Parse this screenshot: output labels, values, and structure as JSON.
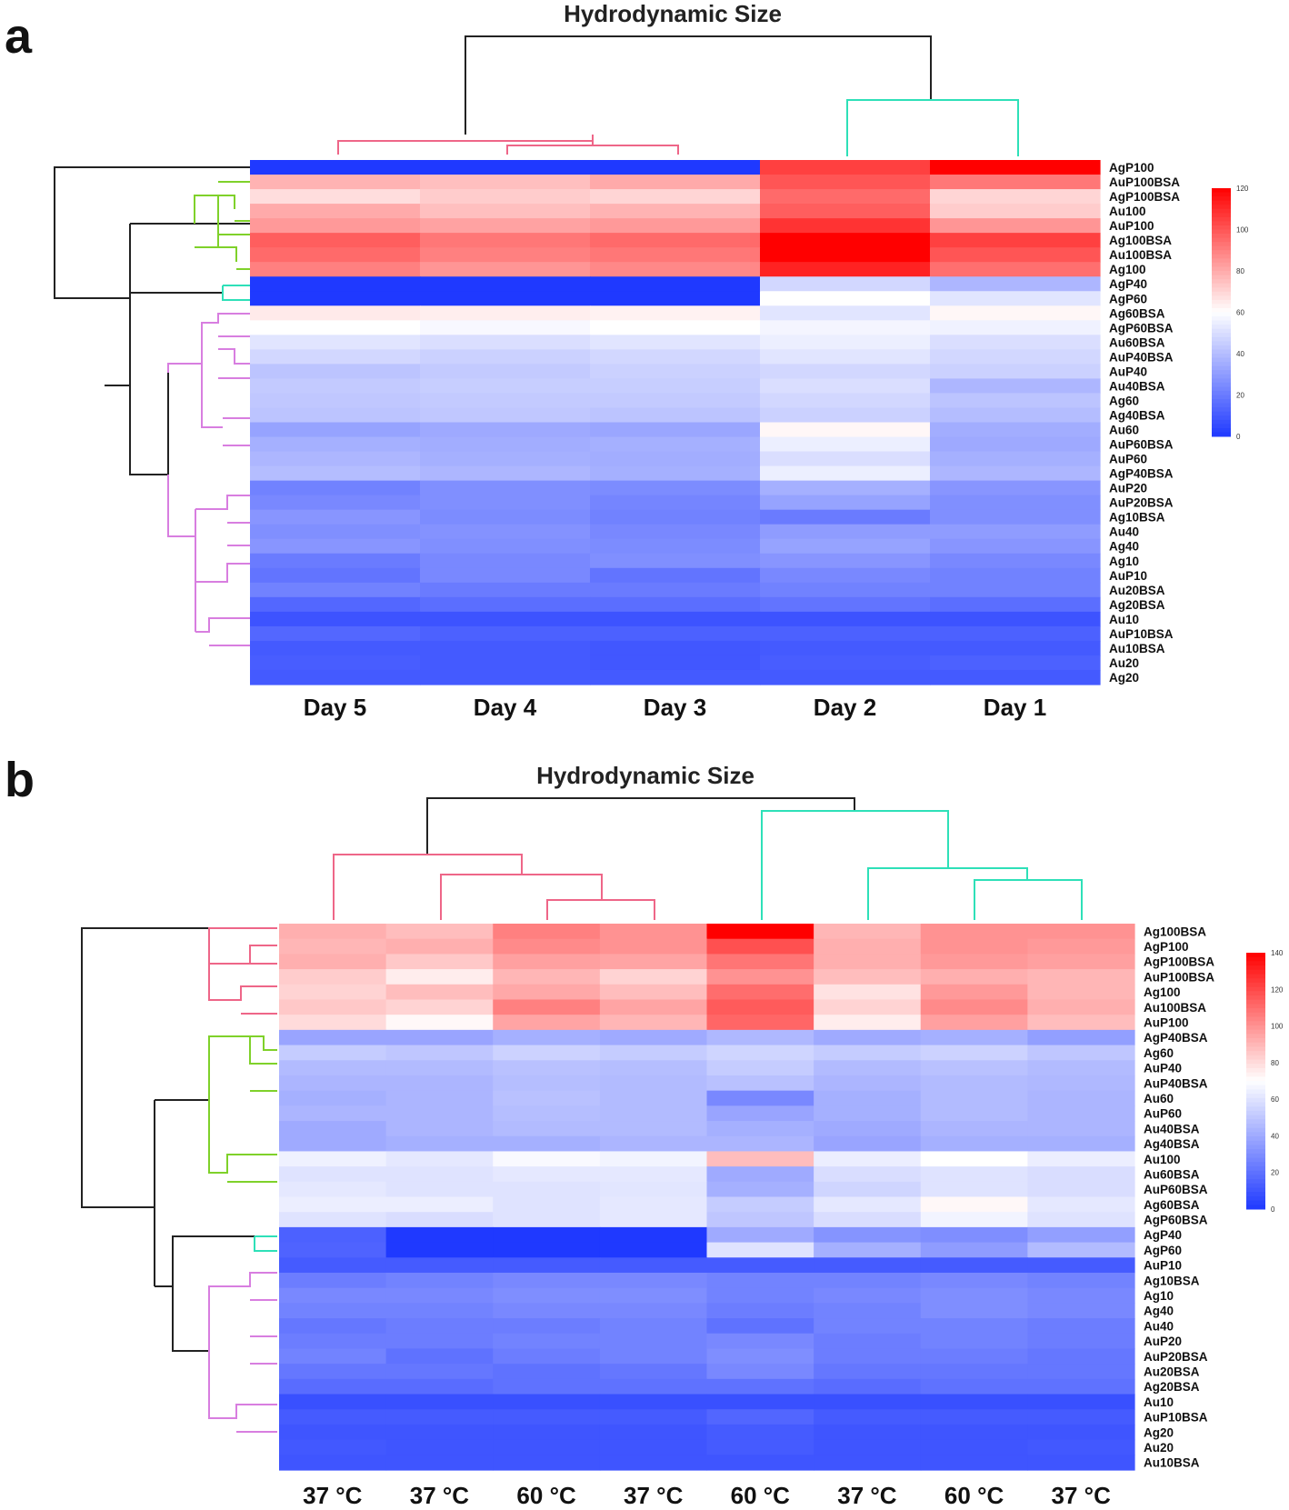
{
  "chart_data": [
    {
      "type": "heatmap",
      "panel": "a",
      "title": "Hydrodynamic Size",
      "columns": [
        "Day 5",
        "Day 4",
        "Day 3",
        "Day 2",
        "Day 1"
      ],
      "rows": [
        "AgP100",
        "AuP100BSA",
        "AgP100BSA",
        "Au100",
        "AuP100",
        "Ag100BSA",
        "Au100BSA",
        "Ag100",
        "AgP40",
        "AgP60",
        "Ag60BSA",
        "AgP60BSA",
        "Au60BSA",
        "AuP40BSA",
        "AuP40",
        "Au40BSA",
        "Ag60",
        "Ag40BSA",
        "Au60",
        "AuP60BSA",
        "AuP60",
        "AgP40BSA",
        "AuP20",
        "AuP20BSA",
        "Ag10BSA",
        "Au40",
        "Ag40",
        "Ag10",
        "AuP10",
        "Au20BSA",
        "Ag20BSA",
        "Au10",
        "AuP10BSA",
        "Au10BSA",
        "Au20",
        "Ag20"
      ],
      "values": [
        [
          0,
          0,
          0,
          105,
          125
        ],
        [
          78,
          75,
          80,
          100,
          92
        ],
        [
          68,
          72,
          70,
          95,
          70
        ],
        [
          80,
          75,
          78,
          98,
          72
        ],
        [
          84,
          82,
          84,
          108,
          85
        ],
        [
          98,
          92,
          95,
          125,
          105
        ],
        [
          95,
          90,
          92,
          120,
          100
        ],
        [
          90,
          85,
          88,
          112,
          94
        ],
        [
          0,
          0,
          0,
          48,
          38
        ],
        [
          0,
          0,
          0,
          60,
          52
        ],
        [
          65,
          64,
          63,
          52,
          62
        ],
        [
          60,
          58,
          60,
          57,
          56
        ],
        [
          52,
          50,
          52,
          55,
          50
        ],
        [
          48,
          46,
          48,
          52,
          48
        ],
        [
          42,
          44,
          46,
          48,
          46
        ],
        [
          44,
          45,
          45,
          50,
          38
        ],
        [
          43,
          44,
          44,
          48,
          42
        ],
        [
          42,
          43,
          42,
          46,
          40
        ],
        [
          32,
          34,
          33,
          62,
          35
        ],
        [
          36,
          35,
          36,
          55,
          34
        ],
        [
          38,
          36,
          35,
          50,
          36
        ],
        [
          40,
          38,
          36,
          55,
          38
        ],
        [
          22,
          26,
          25,
          36,
          28
        ],
        [
          24,
          26,
          23,
          32,
          26
        ],
        [
          28,
          25,
          22,
          20,
          26
        ],
        [
          26,
          27,
          24,
          30,
          30
        ],
        [
          28,
          26,
          25,
          32,
          28
        ],
        [
          20,
          24,
          26,
          28,
          24
        ],
        [
          18,
          24,
          18,
          24,
          22
        ],
        [
          22,
          20,
          20,
          22,
          22
        ],
        [
          14,
          16,
          16,
          18,
          16
        ],
        [
          8,
          8,
          8,
          8,
          8
        ],
        [
          14,
          12,
          12,
          12,
          12
        ],
        [
          10,
          10,
          9,
          10,
          10
        ],
        [
          11,
          10,
          9,
          11,
          12
        ],
        [
          10,
          10,
          10,
          10,
          10
        ]
      ],
      "color_scale": {
        "min": 0,
        "max": 120,
        "ticks": [
          0,
          20,
          40,
          60,
          80,
          100,
          120
        ],
        "low": "#1f39ff",
        "mid": "#ffffff",
        "high": "#ff0000"
      },
      "row_dendrogram_colors": [
        "#111111",
        "#7fd12a",
        "#2ee0b8",
        "#d87ee0"
      ],
      "col_dendrogram_colors": [
        "#111111",
        "#ee6688",
        "#2ee0b8"
      ]
    },
    {
      "type": "heatmap",
      "panel": "b",
      "title": "Hydrodynamic Size",
      "columns": [
        "37 °C",
        "37 °C",
        "60 °C",
        "37 °C",
        "60 °C",
        "37 °C",
        "60 °C",
        "37 °C"
      ],
      "rows": [
        "Ag100BSA",
        "AgP100",
        "AgP100BSA",
        "AuP100BSA",
        "Ag100",
        "Au100BSA",
        "AuP100",
        "AgP40BSA",
        "Ag60",
        "AuP40",
        "AuP40BSA",
        "Au60",
        "AuP60",
        "Au40BSA",
        "Ag40BSA",
        "Au100",
        "Au60BSA",
        "AuP60BSA",
        "Ag60BSA",
        "AgP60BSA",
        "AgP40",
        "AgP60",
        "AuP10",
        "Ag10BSA",
        "Ag10",
        "Ag40",
        "Au40",
        "AuP20",
        "AuP20BSA",
        "Au20BSA",
        "Ag20BSA",
        "Au10",
        "AuP10BSA",
        "Ag20",
        "Au20",
        "Au10BSA"
      ],
      "values": [
        [
          92,
          88,
          105,
          100,
          140,
          90,
          100,
          100
        ],
        [
          90,
          92,
          102,
          100,
          118,
          92,
          100,
          98
        ],
        [
          92,
          85,
          96,
          95,
          108,
          92,
          98,
          96
        ],
        [
          84,
          75,
          90,
          82,
          100,
          88,
          92,
          90
        ],
        [
          82,
          88,
          94,
          88,
          110,
          78,
          98,
          90
        ],
        [
          85,
          82,
          105,
          95,
          115,
          82,
          102,
          92
        ],
        [
          80,
          72,
          95,
          90,
          112,
          75,
          96,
          88
        ],
        [
          38,
          38,
          42,
          40,
          45,
          40,
          42,
          36
        ],
        [
          52,
          50,
          54,
          52,
          55,
          52,
          54,
          50
        ],
        [
          46,
          46,
          48,
          47,
          52,
          46,
          48,
          46
        ],
        [
          44,
          44,
          47,
          46,
          48,
          44,
          46,
          45
        ],
        [
          42,
          44,
          48,
          46,
          28,
          42,
          46,
          44
        ],
        [
          44,
          44,
          47,
          46,
          38,
          42,
          46,
          44
        ],
        [
          40,
          44,
          46,
          46,
          42,
          40,
          44,
          44
        ],
        [
          40,
          42,
          42,
          44,
          44,
          38,
          42,
          42
        ],
        [
          65,
          62,
          68,
          66,
          88,
          64,
          70,
          64
        ],
        [
          60,
          60,
          62,
          62,
          40,
          58,
          60,
          58
        ],
        [
          62,
          60,
          60,
          61,
          42,
          55,
          60,
          58
        ],
        [
          64,
          64,
          60,
          62,
          52,
          62,
          72,
          62
        ],
        [
          60,
          58,
          60,
          62,
          50,
          58,
          66,
          60
        ],
        [
          14,
          0,
          0,
          0,
          40,
          32,
          30,
          36
        ],
        [
          15,
          0,
          0,
          0,
          60,
          42,
          35,
          46
        ],
        [
          12,
          12,
          12,
          12,
          12,
          12,
          12,
          12
        ],
        [
          24,
          26,
          28,
          28,
          26,
          26,
          28,
          26
        ],
        [
          28,
          28,
          30,
          30,
          26,
          28,
          30,
          28
        ],
        [
          26,
          26,
          28,
          28,
          24,
          26,
          30,
          28
        ],
        [
          22,
          24,
          24,
          26,
          20,
          26,
          26,
          24
        ],
        [
          24,
          24,
          26,
          26,
          28,
          24,
          26,
          24
        ],
        [
          26,
          20,
          24,
          26,
          30,
          24,
          24,
          22
        ],
        [
          22,
          22,
          20,
          22,
          28,
          22,
          22,
          22
        ],
        [
          18,
          18,
          20,
          20,
          20,
          18,
          20,
          20
        ],
        [
          8,
          8,
          8,
          8,
          8,
          8,
          8,
          8
        ],
        [
          12,
          12,
          12,
          12,
          16,
          12,
          12,
          12
        ],
        [
          10,
          10,
          10,
          10,
          12,
          10,
          10,
          10
        ],
        [
          11,
          10,
          10,
          10,
          12,
          10,
          10,
          11
        ],
        [
          10,
          10,
          10,
          10,
          10,
          10,
          10,
          10
        ]
      ],
      "color_scale": {
        "min": 0,
        "max": 140,
        "ticks": [
          0,
          20,
          40,
          60,
          80,
          100,
          120,
          140
        ],
        "low": "#1f39ff",
        "mid": "#ffffff",
        "high": "#ff0000"
      },
      "row_dendrogram_colors": [
        "#111111",
        "#ee6688",
        "#7fd12a",
        "#2ee0b8",
        "#d87ee0"
      ],
      "col_dendrogram_colors": [
        "#111111",
        "#ee6688",
        "#2ee0b8"
      ]
    }
  ],
  "panel_letters": [
    "a",
    "b"
  ]
}
